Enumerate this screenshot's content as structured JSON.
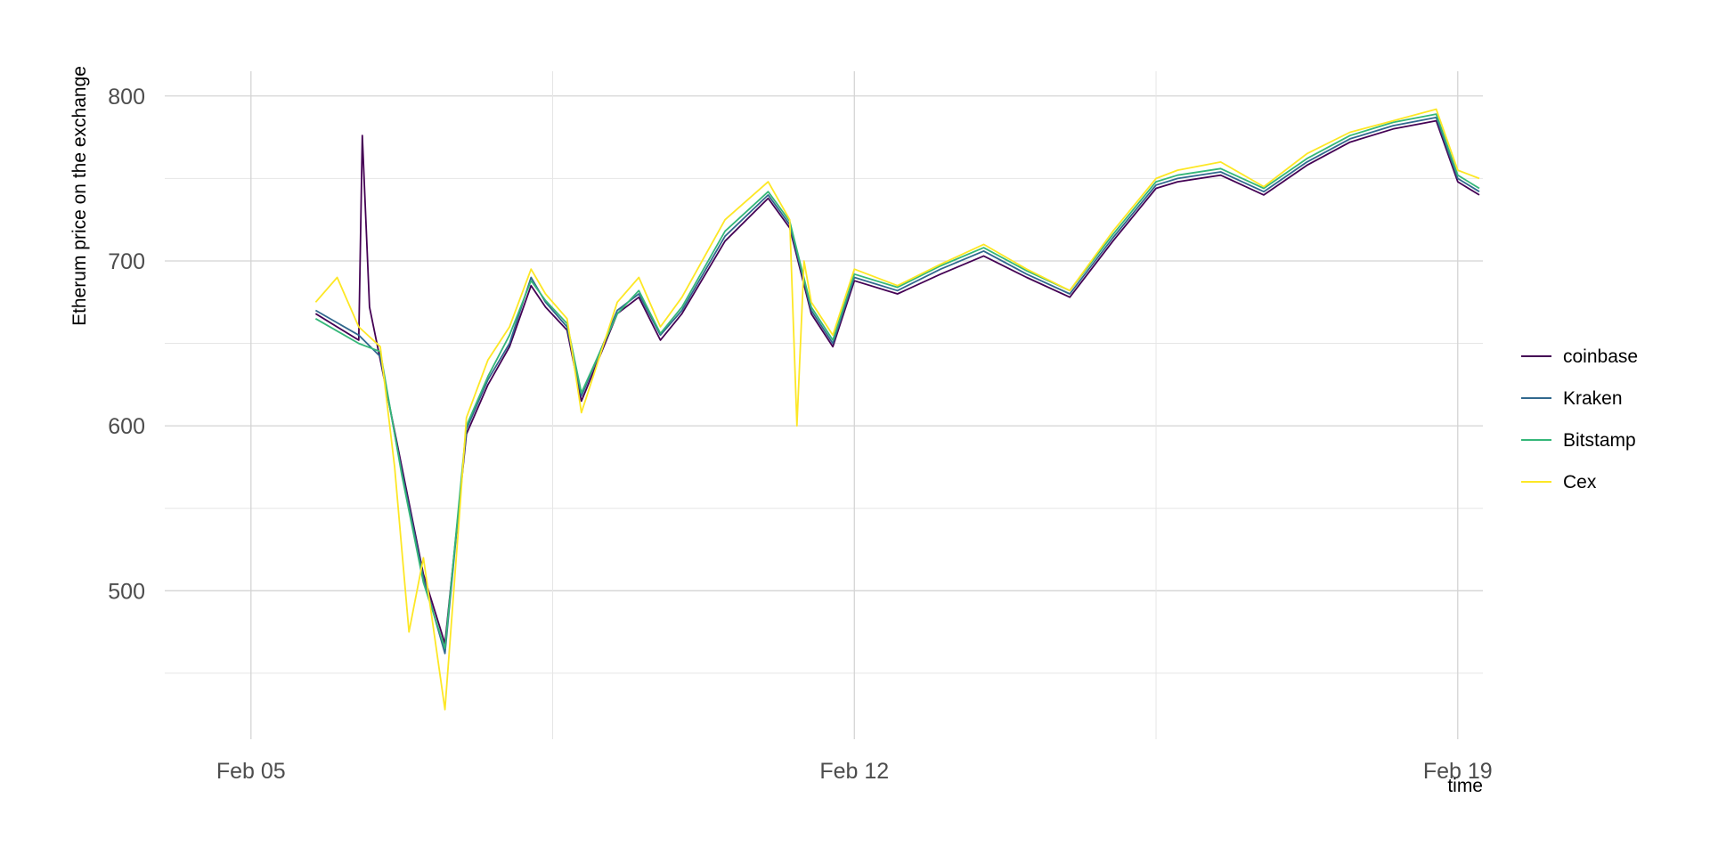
{
  "chart_data": {
    "type": "line",
    "title": "",
    "xlabel": "time",
    "ylabel": "Etherum price on the exchange",
    "x_unit": "date (2018)",
    "xlim": [
      "2018-02-04 00:00",
      "2018-02-19 07:00"
    ],
    "ylim": [
      410,
      815
    ],
    "x_ticks": [
      {
        "value": "2018-02-05",
        "label": "Feb 05"
      },
      {
        "value": "2018-02-12",
        "label": "Feb 12"
      },
      {
        "value": "2018-02-19",
        "label": "Feb 19"
      }
    ],
    "x_minor_ticks": [
      "2018-02-08 12:00",
      "2018-02-15 12:00"
    ],
    "y_ticks": [
      500,
      600,
      700,
      800
    ],
    "y_minor_ticks": [
      450,
      550,
      650,
      750
    ],
    "grid": true,
    "legend_position": "right",
    "series": [
      {
        "name": "coinbase",
        "color": "#440154",
        "x": [
          "2018-02-05 18:00",
          "2018-02-06 06:00",
          "2018-02-06 07:00",
          "2018-02-06 09:00",
          "2018-02-06 12:00",
          "2018-02-06 18:00",
          "2018-02-07 00:00",
          "2018-02-07 06:00",
          "2018-02-07 12:00",
          "2018-02-07 18:00",
          "2018-02-08 00:00",
          "2018-02-08 06:00",
          "2018-02-08 10:00",
          "2018-02-08 16:00",
          "2018-02-08 20:00",
          "2018-02-09 06:00",
          "2018-02-09 12:00",
          "2018-02-09 18:00",
          "2018-02-10 00:00",
          "2018-02-10 12:00",
          "2018-02-11 00:00",
          "2018-02-11 06:00",
          "2018-02-11 12:00",
          "2018-02-11 18:00",
          "2018-02-12 00:00",
          "2018-02-12 12:00",
          "2018-02-13 00:00",
          "2018-02-13 12:00",
          "2018-02-14 00:00",
          "2018-02-14 12:00",
          "2018-02-15 00:00",
          "2018-02-15 12:00",
          "2018-02-15 18:00",
          "2018-02-16 06:00",
          "2018-02-16 18:00",
          "2018-02-17 06:00",
          "2018-02-17 18:00",
          "2018-02-18 06:00",
          "2018-02-18 18:00",
          "2018-02-19 00:00",
          "2018-02-19 06:00"
        ],
        "y": [
          668,
          652,
          776,
          672,
          640,
          575,
          510,
          468,
          595,
          625,
          648,
          685,
          672,
          658,
          615,
          668,
          678,
          652,
          668,
          712,
          738,
          720,
          668,
          648,
          688,
          680,
          692,
          703,
          690,
          678,
          712,
          744,
          748,
          752,
          740,
          758,
          772,
          780,
          785,
          748,
          740
        ]
      },
      {
        "name": "Kraken",
        "color": "#31688E",
        "x": [
          "2018-02-05 18:00",
          "2018-02-06 06:00",
          "2018-02-06 12:00",
          "2018-02-06 18:00",
          "2018-02-07 00:00",
          "2018-02-07 06:00",
          "2018-02-07 12:00",
          "2018-02-07 18:00",
          "2018-02-08 00:00",
          "2018-02-08 06:00",
          "2018-02-08 10:00",
          "2018-02-08 16:00",
          "2018-02-08 20:00",
          "2018-02-09 06:00",
          "2018-02-09 12:00",
          "2018-02-09 18:00",
          "2018-02-10 00:00",
          "2018-02-10 12:00",
          "2018-02-11 00:00",
          "2018-02-11 06:00",
          "2018-02-11 12:00",
          "2018-02-11 18:00",
          "2018-02-12 00:00",
          "2018-02-12 12:00",
          "2018-02-13 00:00",
          "2018-02-13 12:00",
          "2018-02-14 00:00",
          "2018-02-14 12:00",
          "2018-02-15 00:00",
          "2018-02-15 12:00",
          "2018-02-15 18:00",
          "2018-02-16 06:00",
          "2018-02-16 18:00",
          "2018-02-17 06:00",
          "2018-02-17 18:00",
          "2018-02-18 06:00",
          "2018-02-18 18:00",
          "2018-02-19 00:00",
          "2018-02-19 06:00"
        ],
        "y": [
          670,
          655,
          642,
          572,
          508,
          462,
          598,
          628,
          650,
          690,
          675,
          660,
          618,
          670,
          680,
          655,
          670,
          715,
          740,
          722,
          670,
          650,
          690,
          682,
          695,
          706,
          692,
          680,
          714,
          746,
          750,
          754,
          742,
          760,
          774,
          782,
          787,
          750,
          742
        ]
      },
      {
        "name": "Bitstamp",
        "color": "#35B779",
        "x": [
          "2018-02-05 18:00",
          "2018-02-06 06:00",
          "2018-02-06 12:00",
          "2018-02-06 18:00",
          "2018-02-07 00:00",
          "2018-02-07 06:00",
          "2018-02-07 12:00",
          "2018-02-07 18:00",
          "2018-02-08 00:00",
          "2018-02-08 06:00",
          "2018-02-08 10:00",
          "2018-02-08 16:00",
          "2018-02-08 20:00",
          "2018-02-09 06:00",
          "2018-02-09 12:00",
          "2018-02-09 18:00",
          "2018-02-10 00:00",
          "2018-02-10 12:00",
          "2018-02-11 00:00",
          "2018-02-11 06:00",
          "2018-02-11 12:00",
          "2018-02-11 18:00",
          "2018-02-12 00:00",
          "2018-02-12 12:00",
          "2018-02-13 00:00",
          "2018-02-13 12:00",
          "2018-02-14 00:00",
          "2018-02-14 12:00",
          "2018-02-15 00:00",
          "2018-02-15 12:00",
          "2018-02-15 18:00",
          "2018-02-16 06:00",
          "2018-02-16 18:00",
          "2018-02-17 06:00",
          "2018-02-17 18:00",
          "2018-02-18 06:00",
          "2018-02-18 18:00",
          "2018-02-19 00:00",
          "2018-02-19 06:00"
        ],
        "y": [
          665,
          650,
          645,
          570,
          505,
          465,
          600,
          630,
          655,
          688,
          676,
          662,
          620,
          668,
          682,
          656,
          672,
          718,
          742,
          724,
          672,
          652,
          692,
          684,
          697,
          708,
          694,
          682,
          716,
          748,
          752,
          756,
          744,
          762,
          776,
          784,
          789,
          752,
          744
        ]
      },
      {
        "name": "Cex",
        "color": "#FDE725",
        "x": [
          "2018-02-05 18:00",
          "2018-02-06 00:00",
          "2018-02-06 06:00",
          "2018-02-06 12:00",
          "2018-02-06 16:00",
          "2018-02-06 20:00",
          "2018-02-07 00:00",
          "2018-02-07 06:00",
          "2018-02-07 10:00",
          "2018-02-07 12:00",
          "2018-02-07 18:00",
          "2018-02-08 00:00",
          "2018-02-08 06:00",
          "2018-02-08 10:00",
          "2018-02-08 16:00",
          "2018-02-08 20:00",
          "2018-02-09 06:00",
          "2018-02-09 12:00",
          "2018-02-09 18:00",
          "2018-02-10 00:00",
          "2018-02-10 12:00",
          "2018-02-11 00:00",
          "2018-02-11 06:00",
          "2018-02-11 08:00",
          "2018-02-11 10:00",
          "2018-02-11 12:00",
          "2018-02-11 18:00",
          "2018-02-12 00:00",
          "2018-02-12 12:00",
          "2018-02-13 00:00",
          "2018-02-13 12:00",
          "2018-02-14 00:00",
          "2018-02-14 12:00",
          "2018-02-15 00:00",
          "2018-02-15 12:00",
          "2018-02-15 18:00",
          "2018-02-16 06:00",
          "2018-02-16 18:00",
          "2018-02-17 06:00",
          "2018-02-17 18:00",
          "2018-02-18 06:00",
          "2018-02-18 18:00",
          "2018-02-19 00:00",
          "2018-02-19 06:00"
        ],
        "y": [
          675,
          690,
          660,
          648,
          575,
          475,
          520,
          428,
          545,
          605,
          640,
          660,
          695,
          680,
          665,
          608,
          675,
          690,
          660,
          678,
          725,
          748,
          725,
          600,
          700,
          675,
          655,
          695,
          685,
          698,
          710,
          695,
          682,
          718,
          750,
          755,
          760,
          745,
          765,
          778,
          785,
          792,
          755,
          750
        ]
      }
    ]
  }
}
